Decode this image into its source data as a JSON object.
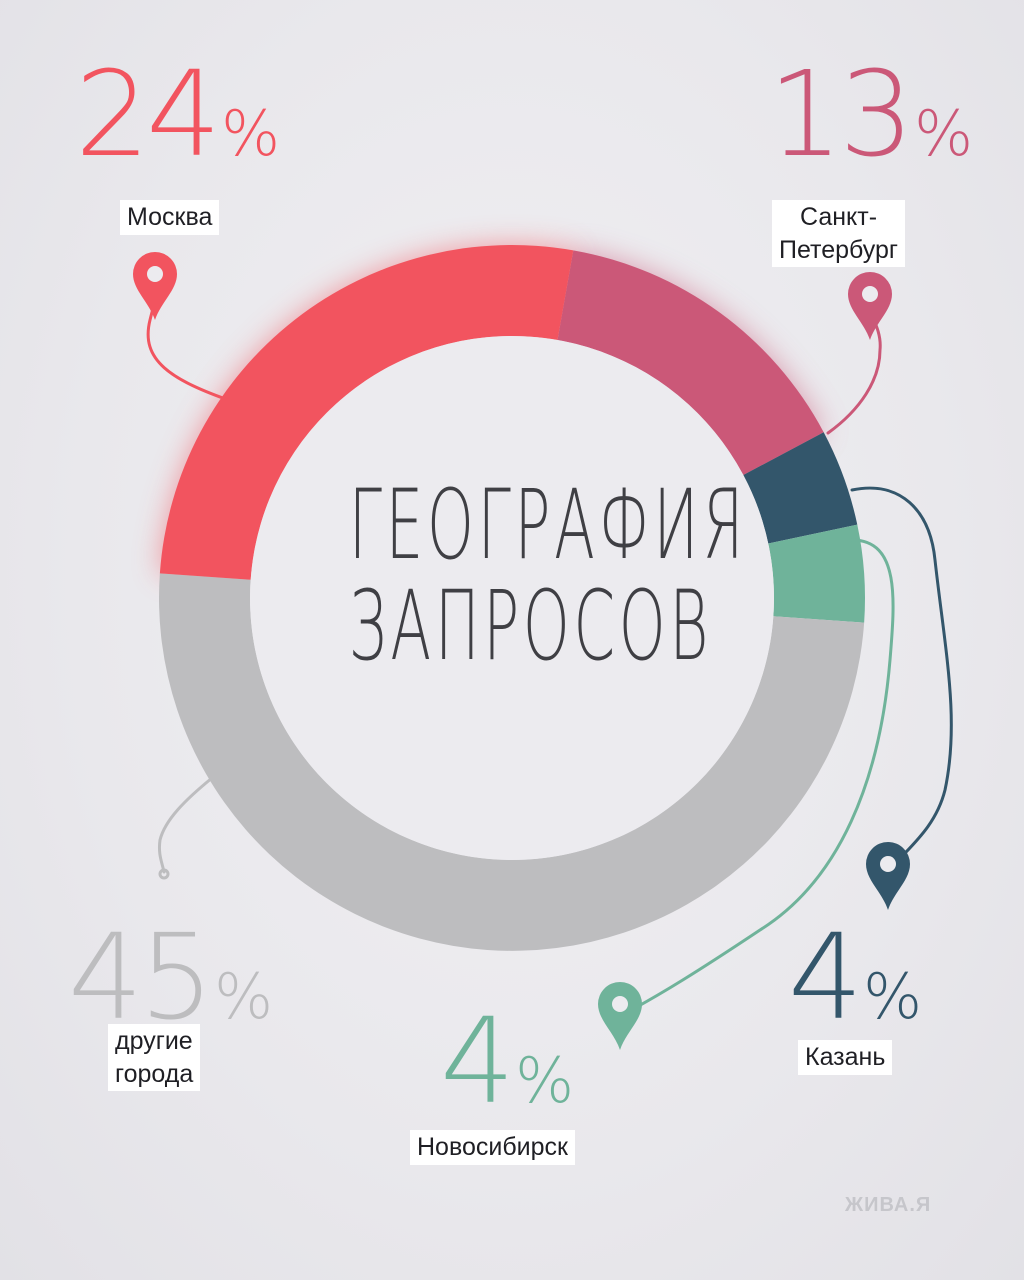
{
  "chart_data": {
    "type": "donut",
    "title": "ГЕОГРАФИЯ ЗАПРОСОВ",
    "title_lines": [
      "ГЕОГРАФИЯ",
      "ЗАПРОСОВ"
    ],
    "slices": [
      {
        "label": "Москва",
        "label_lines": [
          "Москва"
        ],
        "value": 24,
        "display": "24",
        "color": "#f2545f"
      },
      {
        "label": "Санкт-Петербург",
        "label_lines": [
          "Санкт-",
          "Петербург"
        ],
        "value": 13,
        "display": "13",
        "color": "#cb5878"
      },
      {
        "label": "Казань",
        "label_lines": [
          "Казань"
        ],
        "value": 4,
        "display": "4",
        "color": "#33566b"
      },
      {
        "label": "Новосибирск",
        "label_lines": [
          "Новосибирск"
        ],
        "value": 4,
        "display": "4",
        "color": "#6fb39a"
      },
      {
        "label": "другие города",
        "label_lines": [
          "другие",
          "города"
        ],
        "value": 45,
        "display": "45",
        "color": "#bdbdbf"
      }
    ],
    "percent_sign": "%"
  },
  "watermark": "ЖИВА.Я"
}
